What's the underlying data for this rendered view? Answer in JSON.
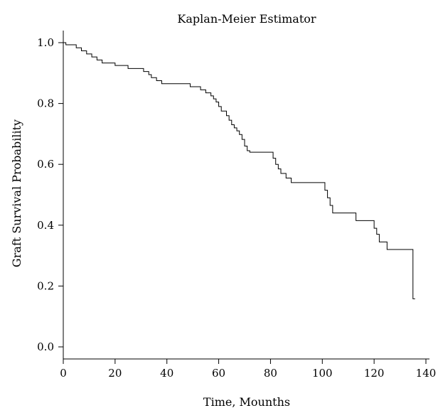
{
  "chart_data": {
    "type": "line",
    "title": "Kaplan-Meier Estimator",
    "xlabel": "Time, Mounths",
    "ylabel": "Graft Survival Probability",
    "xlim": [
      0,
      140
    ],
    "ylim": [
      0.0,
      1.0
    ],
    "xticks": [
      0,
      20,
      40,
      60,
      80,
      100,
      120,
      140
    ],
    "yticks": [
      0.0,
      0.2,
      0.4,
      0.6,
      0.8,
      1.0
    ],
    "x_tick_labels": [
      "0",
      "20",
      "40",
      "60",
      "80",
      "100",
      "120",
      "140"
    ],
    "y_tick_labels": [
      "0.0",
      "0.2",
      "0.4",
      "0.6",
      "0.8",
      "1.0"
    ],
    "grid": false,
    "legend": "none",
    "series": [
      {
        "step": "post",
        "x": [
          0,
          1,
          5,
          7,
          9,
          11,
          13,
          15,
          20,
          25,
          31,
          33,
          34,
          36,
          38,
          49,
          53,
          55,
          57,
          58,
          59,
          60,
          61,
          63,
          64,
          65,
          66,
          67,
          68,
          69,
          70,
          71,
          72,
          81,
          82,
          83,
          84,
          86,
          88,
          101,
          102,
          103,
          104,
          113,
          120,
          121,
          122,
          125,
          135
        ],
        "y": [
          1.0,
          0.993,
          0.983,
          0.973,
          0.963,
          0.953,
          0.943,
          0.933,
          0.925,
          0.915,
          0.905,
          0.895,
          0.885,
          0.875,
          0.865,
          0.855,
          0.845,
          0.835,
          0.825,
          0.815,
          0.805,
          0.79,
          0.775,
          0.76,
          0.745,
          0.73,
          0.72,
          0.71,
          0.698,
          0.682,
          0.66,
          0.645,
          0.64,
          0.62,
          0.6,
          0.585,
          0.57,
          0.555,
          0.54,
          0.515,
          0.49,
          0.465,
          0.44,
          0.415,
          0.39,
          0.37,
          0.345,
          0.32,
          0.158
        ]
      }
    ]
  }
}
